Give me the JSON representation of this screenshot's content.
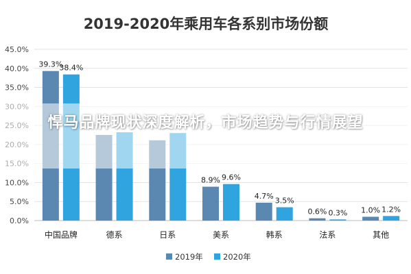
{
  "chart_data": {
    "type": "bar",
    "title": "2019-2020年乘用车各系别市场份额",
    "categories": [
      "中国品牌",
      "德系",
      "日系",
      "美系",
      "韩系",
      "法系",
      "其他"
    ],
    "series": [
      {
        "name": "2019年",
        "color": "#5b88b0",
        "values": [
          39.3,
          22.5,
          21.1,
          8.9,
          4.7,
          0.6,
          1.0
        ],
        "labels": [
          "39.3%",
          "",
          "",
          "8.9%",
          "4.7%",
          "0.6%",
          "1.0%"
        ]
      },
      {
        "name": "2020年",
        "color": "#2fa4de",
        "values": [
          38.4,
          23.2,
          23.0,
          9.6,
          3.5,
          0.3,
          1.2
        ],
        "labels": [
          "38.4%",
          "",
          "",
          "9.6%",
          "3.5%",
          "0.3%",
          "1.2%"
        ]
      }
    ],
    "ylim": [
      0,
      45
    ],
    "yticks": [
      "0.0%",
      "5.0%",
      "10.0%",
      "15.0%",
      "20.0%",
      "25.0%",
      "30.0%",
      "35.0%",
      "40.0%",
      "45.0%"
    ],
    "grid": true,
    "legend": "bottom"
  },
  "overlay": {
    "text": "悍马品牌现状深度解析，市场趋势与行情展望"
  }
}
